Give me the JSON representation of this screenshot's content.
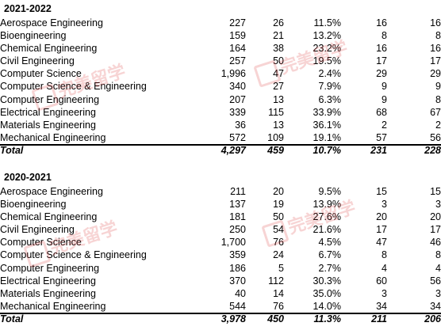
{
  "sections": [
    {
      "year": "2021-2022",
      "rows": [
        [
          "Aerospace Engineering",
          "227",
          "26",
          "11.5%",
          "16",
          "16"
        ],
        [
          "Bioengineering",
          "159",
          "21",
          "13.2%",
          "8",
          "8"
        ],
        [
          "Chemical Engineering",
          "164",
          "38",
          "23.2%",
          "16",
          "16"
        ],
        [
          "Civil Engineering",
          "257",
          "50",
          "19.5%",
          "17",
          "17"
        ],
        [
          "Computer Science",
          "1,996",
          "47",
          "2.4%",
          "29",
          "29"
        ],
        [
          "Computer Science & Engineering",
          "340",
          "27",
          "7.9%",
          "9",
          "9"
        ],
        [
          "Computer Engineering",
          "207",
          "13",
          "6.3%",
          "9",
          "8"
        ],
        [
          "Electrical Engineering",
          "339",
          "115",
          "33.9%",
          "68",
          "67"
        ],
        [
          "Materials Engineering",
          "36",
          "13",
          "36.1%",
          "2",
          "2"
        ],
        [
          "Mechanical Engineering",
          "572",
          "109",
          "19.1%",
          "57",
          "56"
        ]
      ],
      "total": [
        "Total",
        "4,297",
        "459",
        "10.7%",
        "231",
        "228"
      ]
    },
    {
      "year": "2020-2021",
      "rows": [
        [
          "Aerospace Engineering",
          "211",
          "20",
          "9.5%",
          "15",
          "15"
        ],
        [
          "Bioengineering",
          "137",
          "19",
          "13.9%",
          "3",
          "3"
        ],
        [
          "Chemical Engineering",
          "181",
          "50",
          "27.6%",
          "20",
          "20"
        ],
        [
          "Civil Engineering",
          "250",
          "54",
          "21.6%",
          "17",
          "17"
        ],
        [
          "Computer Science",
          "1,700",
          "76",
          "4.5%",
          "47",
          "46"
        ],
        [
          "Computer Science & Engineering",
          "359",
          "24",
          "6.7%",
          "8",
          "8"
        ],
        [
          "Computer Engineering",
          "186",
          "5",
          "2.7%",
          "4",
          "4"
        ],
        [
          "Electrical Engineering",
          "370",
          "112",
          "30.3%",
          "60",
          "56"
        ],
        [
          "Materials Engineering",
          "40",
          "14",
          "35.0%",
          "3",
          "3"
        ],
        [
          "Mechanical Engineering",
          "544",
          "76",
          "14.0%",
          "34",
          "34"
        ]
      ],
      "total": [
        "Total",
        "3,978",
        "450",
        "11.3%",
        "211",
        "206"
      ]
    }
  ],
  "watermarks": [
    {
      "text": "完美留学"
    },
    {
      "text": "完美留学"
    },
    {
      "text": "完美留学"
    },
    {
      "text": "完美留学"
    }
  ]
}
